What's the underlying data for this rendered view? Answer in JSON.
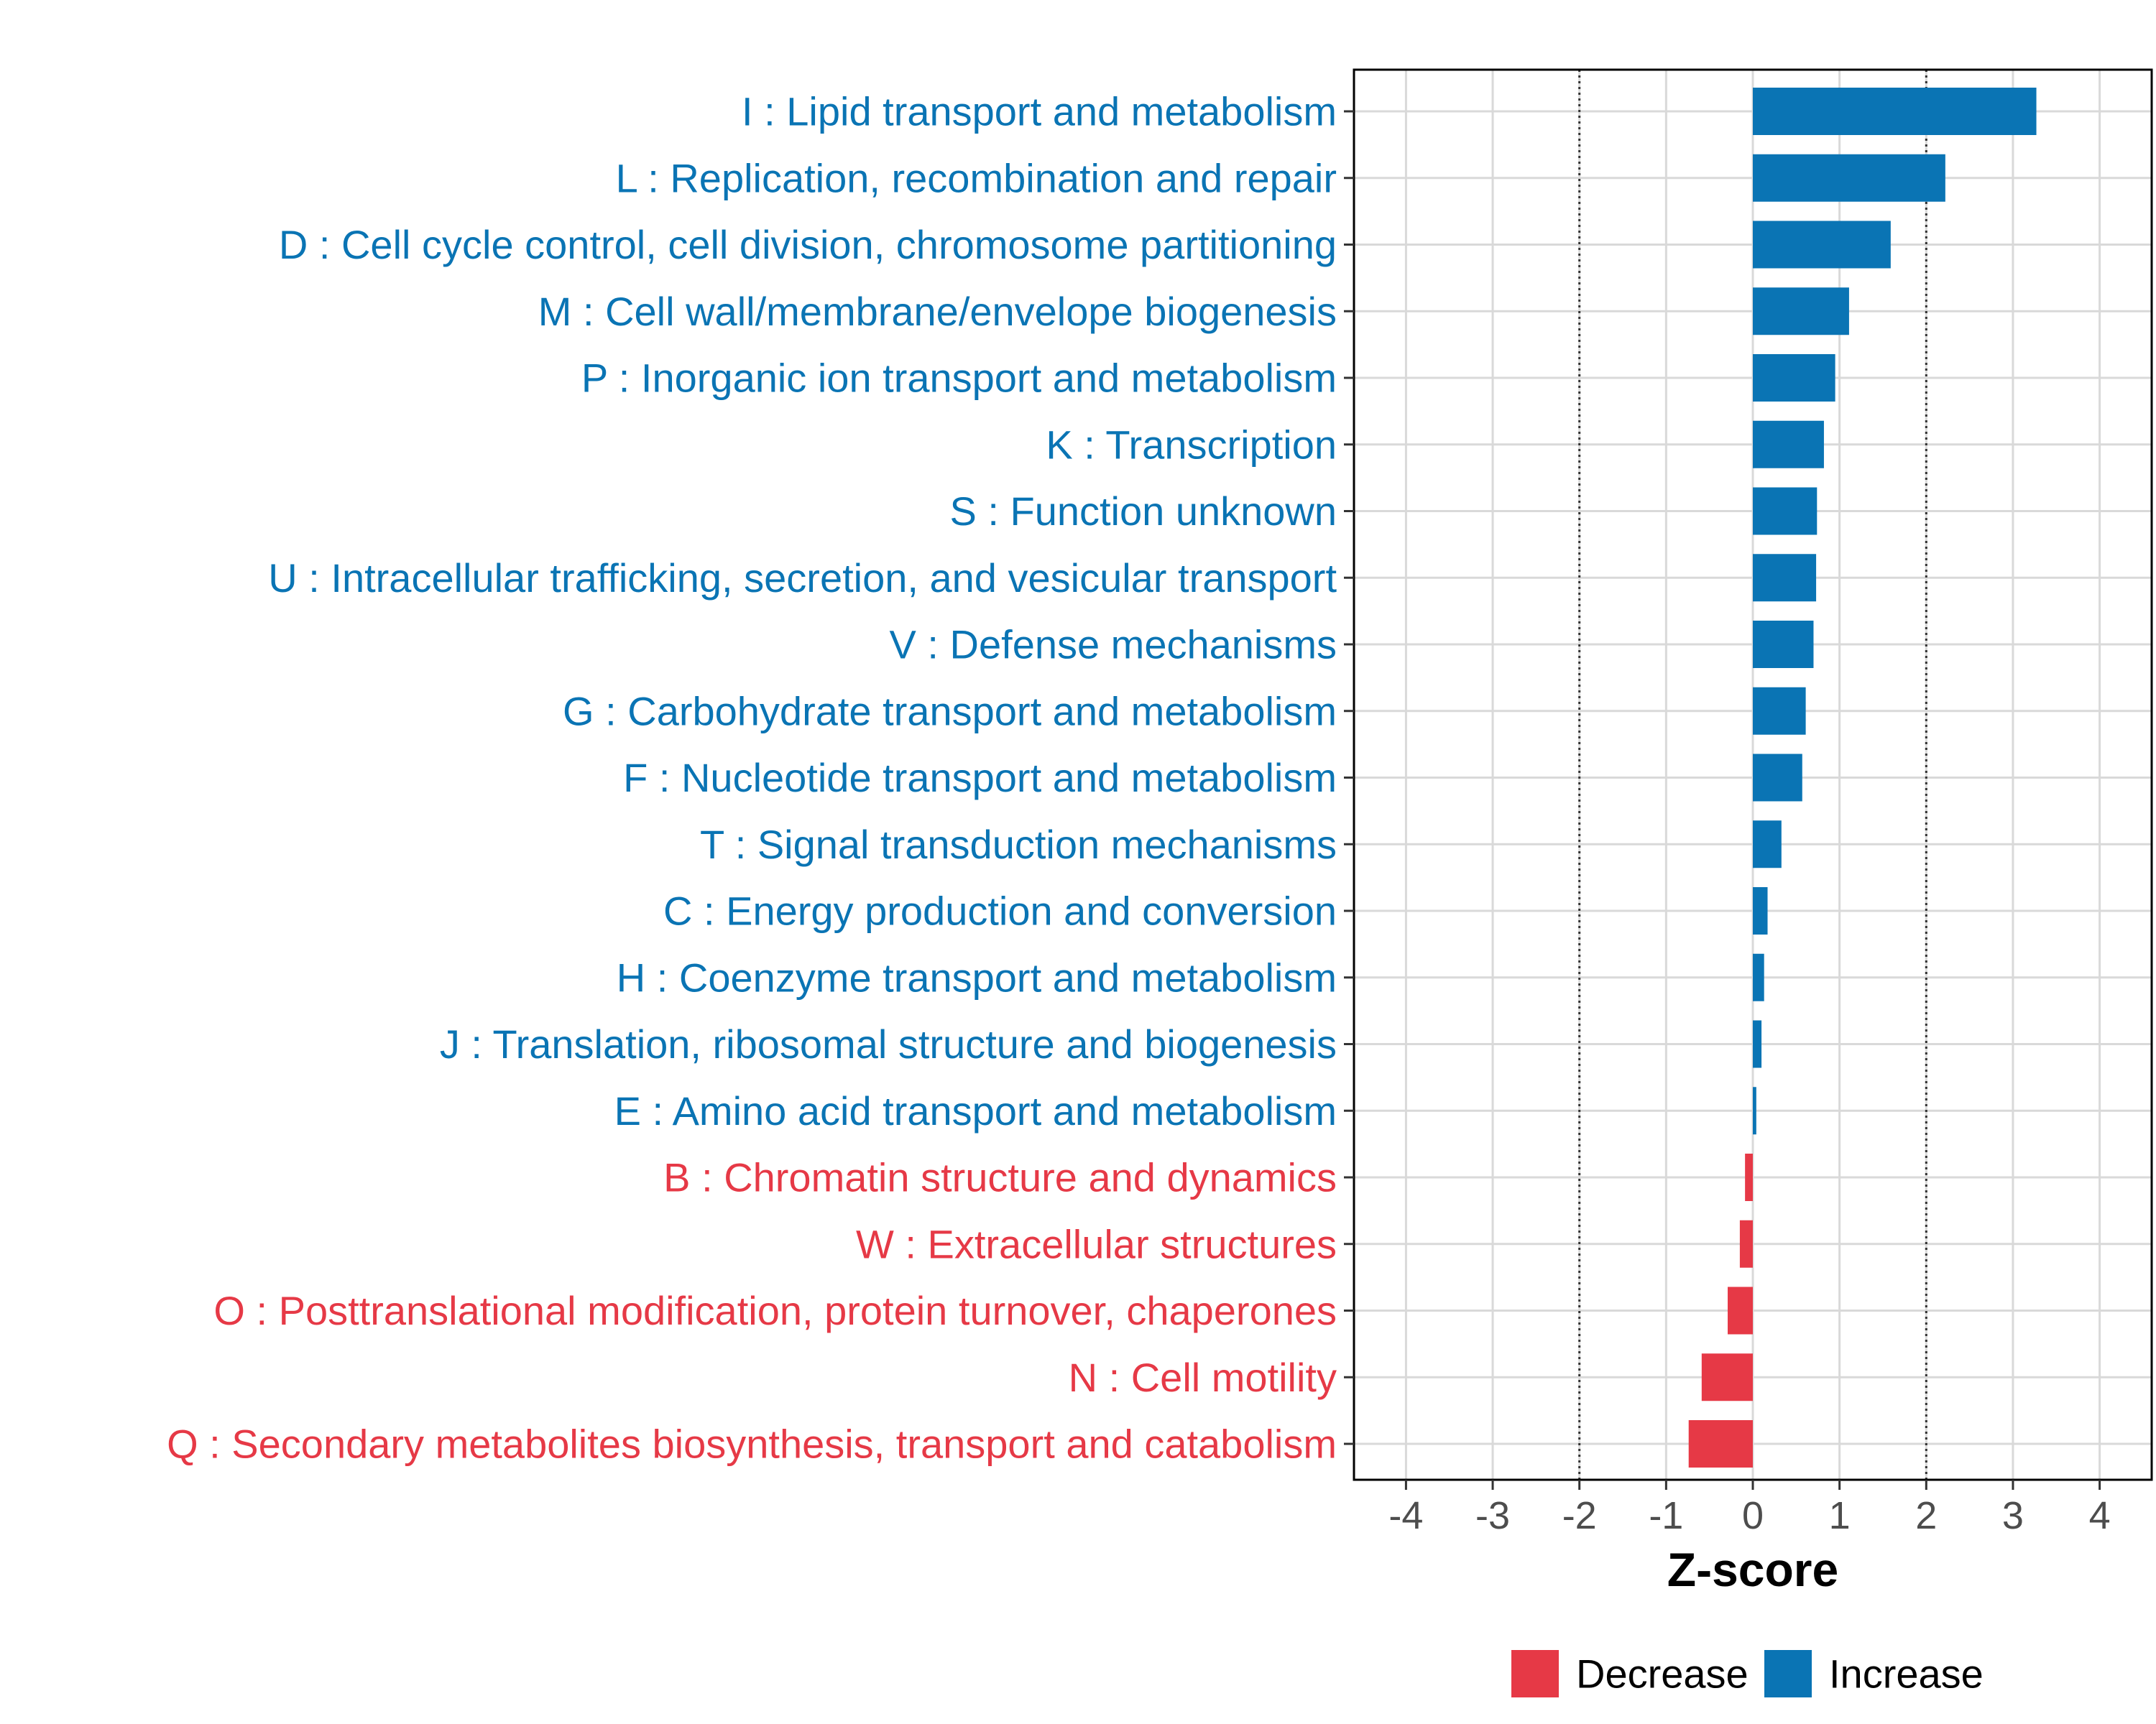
{
  "chart_data": {
    "type": "bar",
    "orientation": "horizontal",
    "title": "",
    "xlabel": "Z-score",
    "ylabel": "",
    "xlim": [
      -4.6,
      4.6
    ],
    "x_ticks": [
      -4,
      -3,
      -2,
      -1,
      0,
      1,
      2,
      3,
      4
    ],
    "x_tick_labels": [
      "-4",
      "-3",
      "-2",
      "-1",
      "0",
      "1",
      "2",
      "3",
      "4"
    ],
    "reference_lines": [
      -2,
      2
    ],
    "grid": true,
    "categories": [
      "I : Lipid transport and metabolism",
      "L : Replication, recombination and repair",
      "D : Cell cycle control, cell division, chromosome partitioning",
      "M : Cell wall/membrane/envelope biogenesis",
      "P : Inorganic ion transport and metabolism",
      "K : Transcription",
      "S : Function unknown",
      "U : Intracellular trafficking, secretion, and vesicular transport",
      "V : Defense mechanisms",
      "G : Carbohydrate transport and metabolism",
      "F : Nucleotide transport and metabolism",
      "T : Signal transduction mechanisms",
      "C : Energy production and conversion",
      "H : Coenzyme transport and metabolism",
      "J : Translation, ribosomal structure and biogenesis",
      "E : Amino acid transport and metabolism",
      "B : Chromatin structure and dynamics",
      "W : Extracellular structures",
      "O : Posttranslational modification, protein turnover, chaperones",
      "N : Cell motility",
      "Q : Secondary metabolites biosynthesis, transport and catabolism"
    ],
    "values": [
      3.27,
      2.22,
      1.59,
      1.11,
      0.95,
      0.82,
      0.74,
      0.73,
      0.7,
      0.61,
      0.57,
      0.33,
      0.17,
      0.13,
      0.1,
      0.04,
      -0.09,
      -0.15,
      -0.29,
      -0.59,
      -0.74
    ],
    "groups": [
      "Increase",
      "Increase",
      "Increase",
      "Increase",
      "Increase",
      "Increase",
      "Increase",
      "Increase",
      "Increase",
      "Increase",
      "Increase",
      "Increase",
      "Increase",
      "Increase",
      "Increase",
      "Increase",
      "Decrease",
      "Decrease",
      "Decrease",
      "Decrease",
      "Decrease"
    ],
    "legend": {
      "position": "bottom",
      "entries": [
        {
          "label": "Decrease",
          "color": "#e63946"
        },
        {
          "label": "Increase",
          "color": "#0a74b4"
        }
      ]
    }
  }
}
